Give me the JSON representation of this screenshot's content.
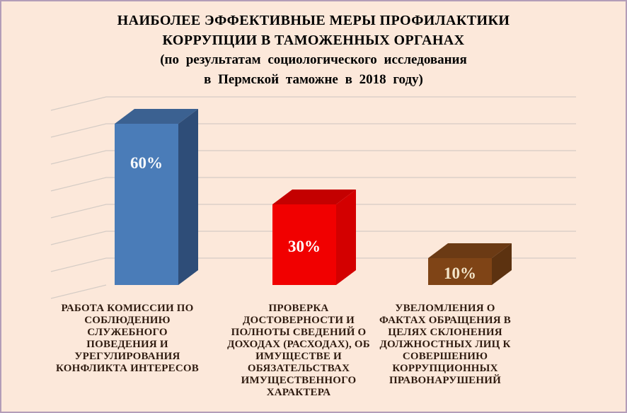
{
  "slide": {
    "background_color": "#FCE8DA",
    "border_color": "#B39DB8"
  },
  "title": {
    "lines": [
      "НАИБОЛЕЕ ЭФФЕКТИВНЫЕ МЕРЫ ПРОФИЛАКТИКИ",
      "КОРРУПЦИИ В ТАМОЖЕННЫХ ОРГАНАХ",
      "(по результатам социологического исследования",
      "в Пермской таможне в 2018 году)"
    ]
  },
  "chart_data": {
    "type": "bar",
    "projection": "3d",
    "title": "НАИБОЛЕЕ ЭФФЕКТИВНЫЕ МЕРЫ ПРОФИЛАКТИКИ КОРРУПЦИИ В ТАМОЖЕННЫХ ОРГАНАХ (по результатам социологического исследования в Пермской таможне в 2018 году)",
    "values": [
      60,
      30,
      10
    ],
    "value_labels": [
      "60%",
      "30%",
      "10%"
    ],
    "categories": [
      "РАБОТА КОМИССИИ ПО\nСОБЛЮДЕНИЮ\nСЛУЖЕБНОГО\nПОВЕДЕНИЯ И\nУРЕГУЛИРОВАНИЯ\nКОНФЛИКТА ИНТЕРЕСОВ",
      "ПРОВЕРКА\nДОСТОВЕРНОСТИ И\nПОЛНОТЫ СВЕДЕНИЙ О\nДОХОДАХ (РАСХОДАХ), ОБ\nИМУЩЕСТВЕ И\nОБЯЗАТЕЛЬСТВАХ\nИМУЩЕСТВЕННОГО\nХАРАКТЕРА",
      "УВЕЛОМЛЕНИЯ О\nФАКТАХ ОБРАЩЕНИЯ В\nЦЕЛЯХ СКЛОНЕНИЯ\nДОЛЖНОСТНЫХ ЛИЦ К\nСОВЕРШЕНИЮ\nКОРРУПЦИОННЫХ\nПРАВОНАРУШЕНИЙ"
    ],
    "ylim": [
      0,
      70
    ],
    "grid": true,
    "gridline_step": 10,
    "gridline_color": "#D5CCC5",
    "legend": false,
    "bars": [
      {
        "name": "blue-bar",
        "front": "#4A7CB8",
        "top": "#3B6191",
        "side": "#2E4D78",
        "label_color": "#F8FAFC"
      },
      {
        "name": "red-bar",
        "front": "#F10000",
        "top": "#C40000",
        "side": "#D30000",
        "label_color": "#FFFFFF"
      },
      {
        "name": "brown-bar",
        "front": "#7F4416",
        "top": "#6B3A14",
        "side": "#5C3210",
        "label_color": "#F3E5C9"
      }
    ]
  }
}
